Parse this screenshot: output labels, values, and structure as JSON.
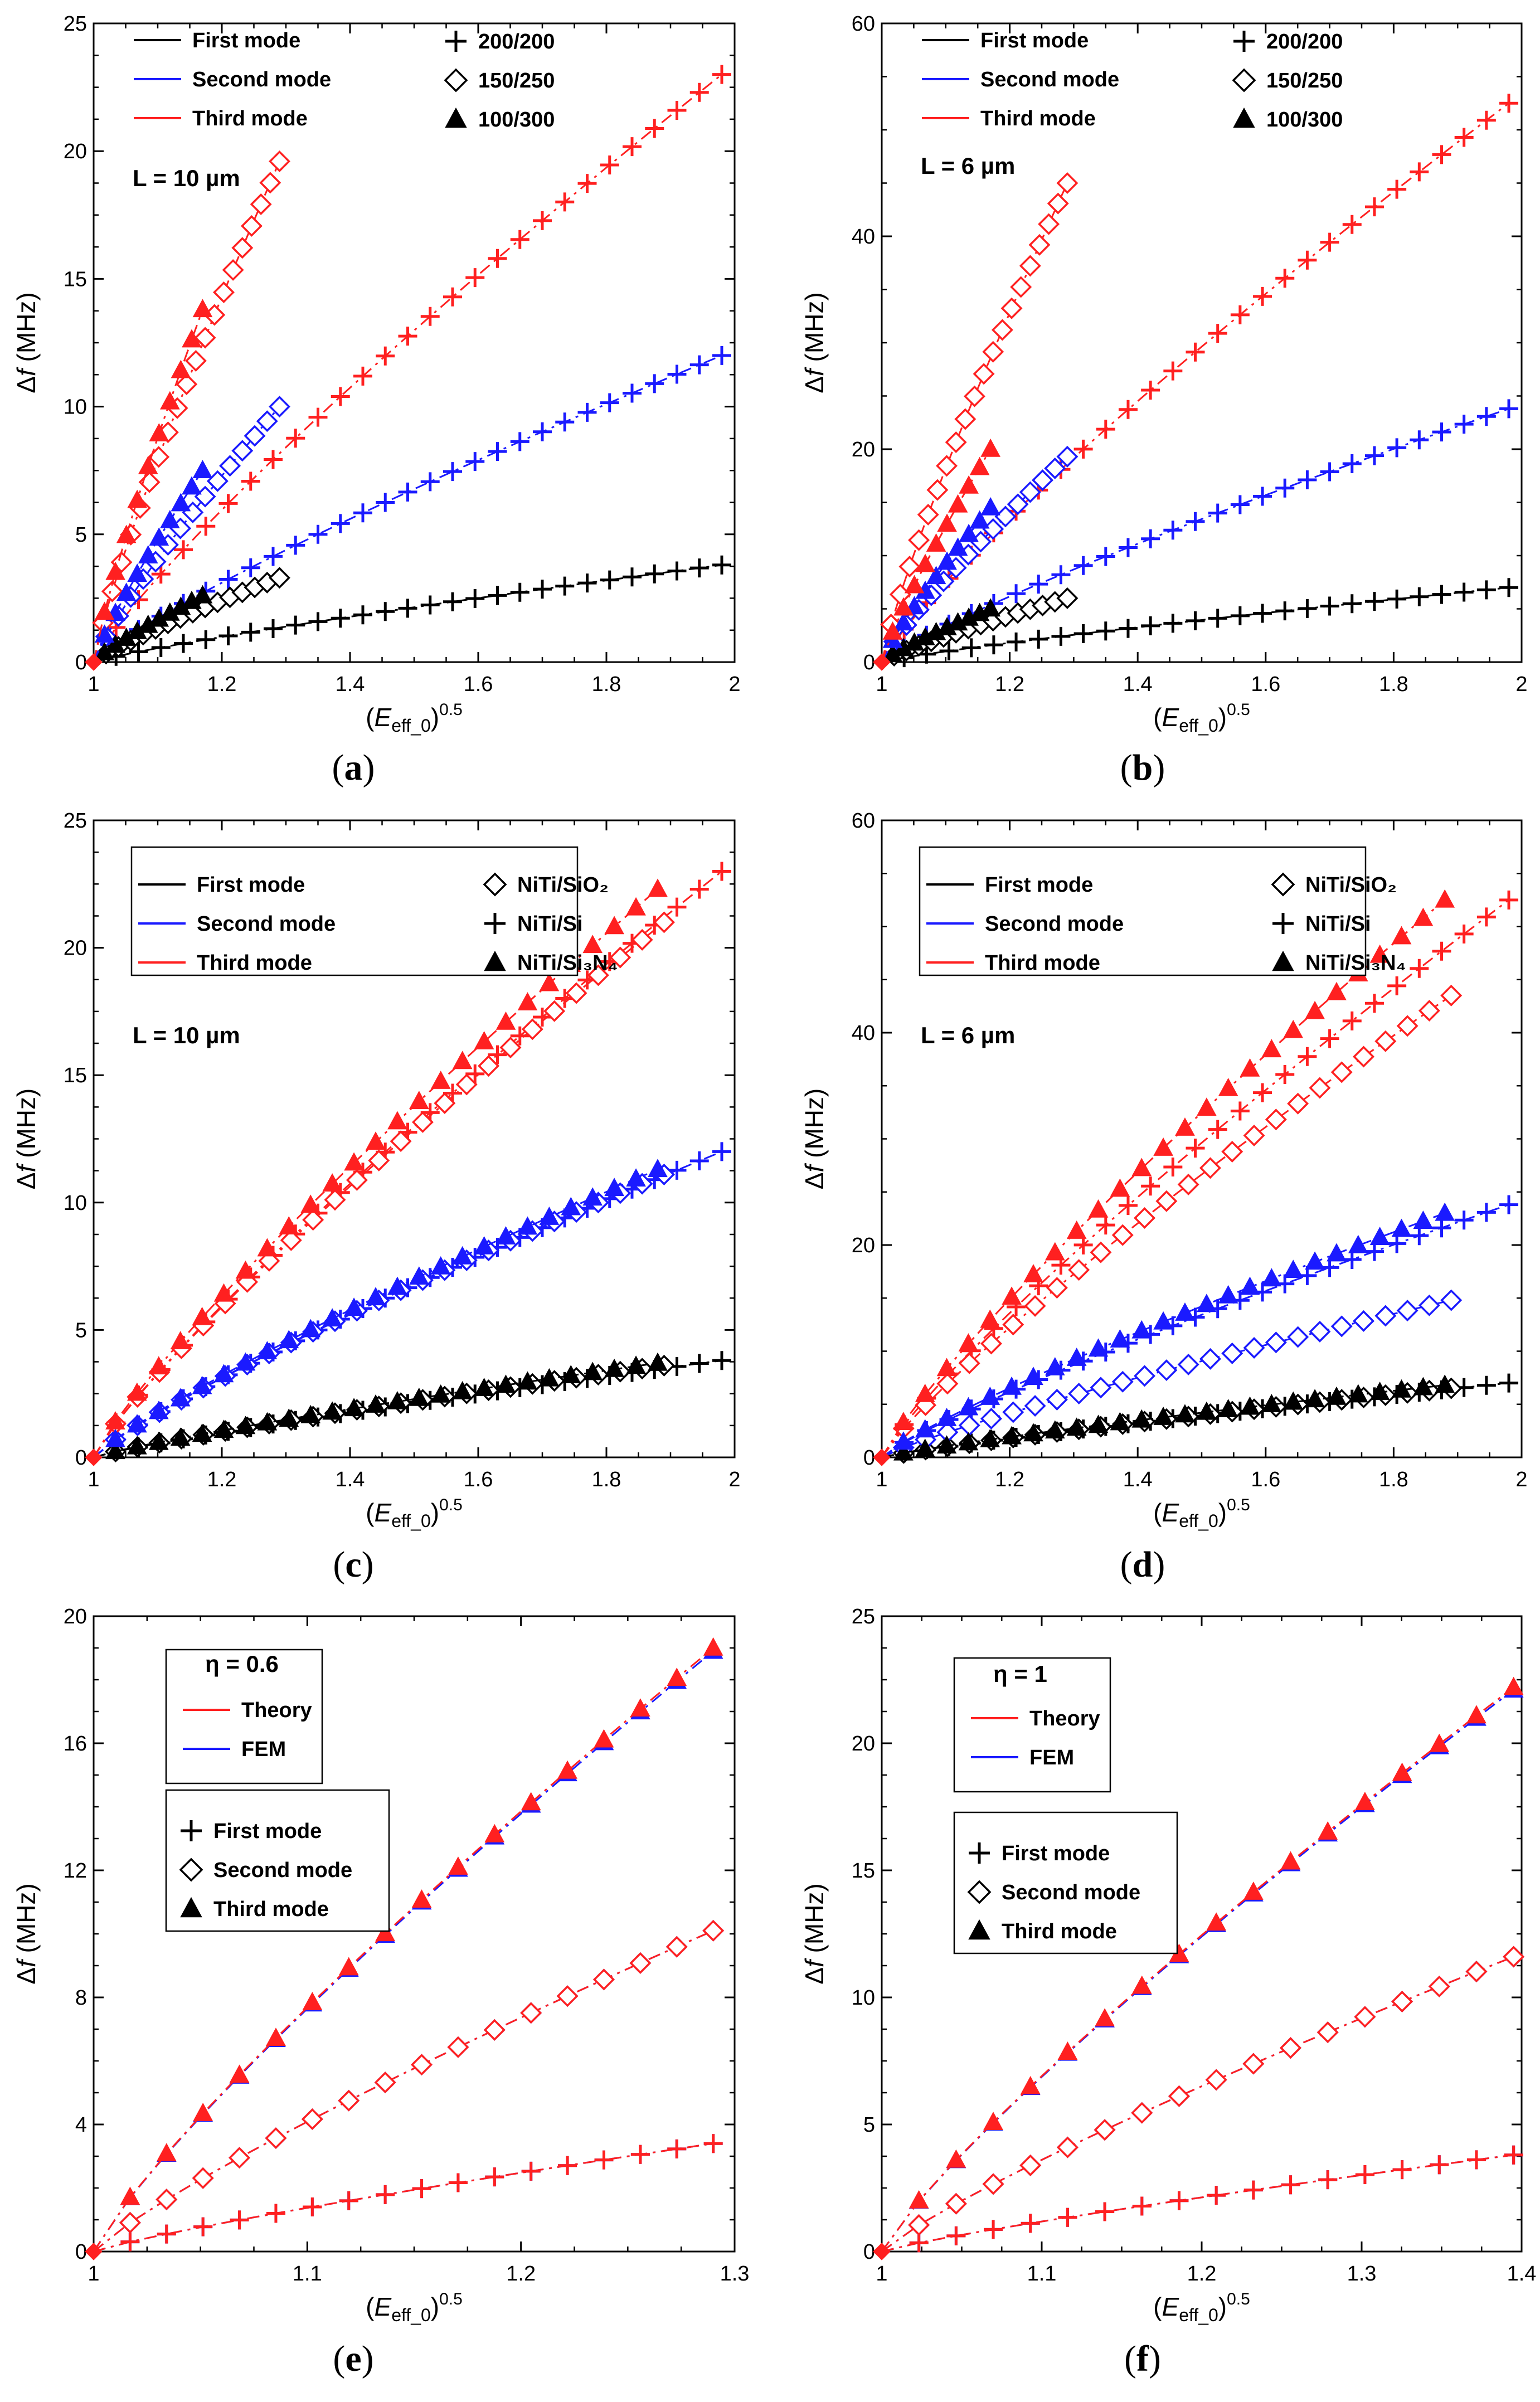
{
  "figure": {
    "panel_labels": [
      "a",
      "b",
      "c",
      "d",
      "e",
      "f"
    ]
  },
  "chart_data": [
    {
      "panel": "a",
      "type": "line",
      "ylabel": "Δf (MHz)",
      "xlabel": "(E_eff_0)^0.5",
      "xlim": [
        1,
        2
      ],
      "ylim": [
        0,
        25
      ],
      "xticks": [
        "1",
        "1.2",
        "1.4",
        "1.6",
        "1.8",
        "2"
      ],
      "yticks": [
        "0",
        "5",
        "10",
        "15",
        "20",
        "25"
      ],
      "annotation": "L = 10 µm",
      "legend_lines": [
        {
          "label": "First mode",
          "color": "#000000"
        },
        {
          "label": "Second mode",
          "color": "#1a1aff"
        },
        {
          "label": "Third mode",
          "color": "#ff2020"
        }
      ],
      "legend_markers": [
        {
          "label": "200/200",
          "marker": "plus"
        },
        {
          "label": "150/250",
          "marker": "diamond"
        },
        {
          "label": "100/300",
          "marker": "triangle"
        }
      ],
      "series": [
        {
          "name": "First mode 200/200",
          "color": "#000000",
          "marker": "plus",
          "x_end": 1.98,
          "y_end": 3.8,
          "n": 28
        },
        {
          "name": "Second mode 200/200",
          "color": "#1a1aff",
          "marker": "plus",
          "x_end": 1.98,
          "y_end": 12.0,
          "n": 28
        },
        {
          "name": "Third mode 200/200",
          "color": "#ff2020",
          "marker": "plus",
          "x_end": 1.98,
          "y_end": 23.0,
          "n": 28
        },
        {
          "name": "First mode 150/250",
          "color": "#000000",
          "marker": "diamond",
          "x_end": 1.29,
          "y_end": 3.3,
          "n": 15
        },
        {
          "name": "Second mode 150/250",
          "color": "#1a1aff",
          "marker": "diamond",
          "x_end": 1.29,
          "y_end": 10.0,
          "n": 15
        },
        {
          "name": "Third mode 150/250",
          "color": "#ff2020",
          "marker": "diamond",
          "x_end": 1.29,
          "y_end": 19.6,
          "n": 20
        },
        {
          "name": "First mode 100/300",
          "color": "#000000",
          "marker": "triangle",
          "x_end": 1.17,
          "y_end": 2.6,
          "n": 10
        },
        {
          "name": "Second mode 100/300",
          "color": "#1a1aff",
          "marker": "triangle",
          "x_end": 1.17,
          "y_end": 7.5,
          "n": 10
        },
        {
          "name": "Third mode 100/300",
          "color": "#ff2020",
          "marker": "triangle",
          "x_end": 1.17,
          "y_end": 13.8,
          "n": 10
        }
      ]
    },
    {
      "panel": "b",
      "type": "line",
      "ylabel": "Δf (MHz)",
      "xlabel": "(E_eff_0)^0.5",
      "xlim": [
        1,
        2
      ],
      "ylim": [
        0,
        60
      ],
      "xticks": [
        "1",
        "1.2",
        "1.4",
        "1.6",
        "1.8",
        "2"
      ],
      "yticks": [
        "0",
        "20",
        "40",
        "60"
      ],
      "annotation": "L = 6 µm",
      "legend_lines": [
        {
          "label": "First mode",
          "color": "#000000"
        },
        {
          "label": "Second mode",
          "color": "#1a1aff"
        },
        {
          "label": "Third mode",
          "color": "#ff2020"
        }
      ],
      "legend_markers": [
        {
          "label": "200/200",
          "marker": "plus"
        },
        {
          "label": "150/250",
          "marker": "diamond"
        },
        {
          "label": "100/300",
          "marker": "triangle"
        }
      ],
      "series": [
        {
          "name": "First mode 200/200",
          "color": "#000000",
          "marker": "plus",
          "x_end": 1.98,
          "y_end": 7.0,
          "n": 28
        },
        {
          "name": "Second mode 200/200",
          "color": "#1a1aff",
          "marker": "plus",
          "x_end": 1.98,
          "y_end": 23.8,
          "n": 28
        },
        {
          "name": "Third mode 200/200",
          "color": "#ff2020",
          "marker": "plus",
          "x_end": 1.98,
          "y_end": 52.5,
          "n": 28
        },
        {
          "name": "First mode 150/250",
          "color": "#000000",
          "marker": "diamond",
          "x_end": 1.29,
          "y_end": 6.0,
          "n": 15
        },
        {
          "name": "Second mode 150/250",
          "color": "#1a1aff",
          "marker": "diamond",
          "x_end": 1.29,
          "y_end": 19.3,
          "n": 15
        },
        {
          "name": "Third mode 150/250",
          "color": "#ff2020",
          "marker": "diamond",
          "x_end": 1.29,
          "y_end": 45.0,
          "n": 20
        },
        {
          "name": "First mode 100/300",
          "color": "#000000",
          "marker": "triangle",
          "x_end": 1.17,
          "y_end": 5.0,
          "n": 10
        },
        {
          "name": "Second mode 100/300",
          "color": "#1a1aff",
          "marker": "triangle",
          "x_end": 1.17,
          "y_end": 14.5,
          "n": 10
        },
        {
          "name": "Third mode 100/300",
          "color": "#ff2020",
          "marker": "triangle",
          "x_end": 1.17,
          "y_end": 20.0,
          "n": 10
        }
      ]
    },
    {
      "panel": "c",
      "type": "line",
      "ylabel": "Δf (MHz)",
      "xlabel": "(E_eff_0)^0.5",
      "xlim": [
        1,
        2
      ],
      "ylim": [
        0,
        25
      ],
      "xticks": [
        "1",
        "1.2",
        "1.4",
        "1.6",
        "1.8",
        "2"
      ],
      "yticks": [
        "0",
        "5",
        "10",
        "15",
        "20",
        "25"
      ],
      "annotation": "L = 10 µm",
      "legend_lines": [
        {
          "label": "First mode",
          "color": "#000000"
        },
        {
          "label": "Second mode",
          "color": "#1a1aff"
        },
        {
          "label": "Third mode",
          "color": "#ff2020"
        }
      ],
      "legend_markers": [
        {
          "label": "NiTi/SiO₂",
          "marker": "diamond"
        },
        {
          "label": "NiTi/Si",
          "marker": "plus"
        },
        {
          "label": "NiTi/Si₃N₄",
          "marker": "triangle"
        }
      ],
      "series": [
        {
          "name": "First mode NiTi/Si",
          "color": "#000000",
          "marker": "plus",
          "x_end": 1.98,
          "y_end": 3.8,
          "n": 28
        },
        {
          "name": "Second mode NiTi/Si",
          "color": "#1a1aff",
          "marker": "plus",
          "x_end": 1.98,
          "y_end": 12.0,
          "n": 28
        },
        {
          "name": "Third mode NiTi/Si",
          "color": "#ff2020",
          "marker": "plus",
          "x_end": 1.98,
          "y_end": 23.0,
          "n": 28
        },
        {
          "name": "First mode NiTi/SiO2",
          "color": "#000000",
          "marker": "diamond",
          "x_end": 1.89,
          "y_end": 3.6,
          "n": 26
        },
        {
          "name": "Second mode NiTi/SiO2",
          "color": "#1a1aff",
          "marker": "diamond",
          "x_end": 1.89,
          "y_end": 11.1,
          "n": 26
        },
        {
          "name": "Third mode NiTi/SiO2",
          "color": "#ff2020",
          "marker": "diamond",
          "x_end": 1.89,
          "y_end": 21.0,
          "n": 26
        },
        {
          "name": "First mode NiTi/Si3N4",
          "color": "#000000",
          "marker": "triangle",
          "x_end": 1.88,
          "y_end": 3.7,
          "n": 26
        },
        {
          "name": "Second mode NiTi/Si3N4",
          "color": "#1a1aff",
          "marker": "triangle",
          "x_end": 1.88,
          "y_end": 11.3,
          "n": 26
        },
        {
          "name": "Third mode NiTi/Si3N4",
          "color": "#ff2020",
          "marker": "triangle",
          "x_end": 1.88,
          "y_end": 22.3,
          "n": 26
        }
      ]
    },
    {
      "panel": "d",
      "type": "line",
      "ylabel": "Δf (MHz)",
      "xlabel": "(E_eff_0)^0.5",
      "xlim": [
        1,
        2
      ],
      "ylim": [
        0,
        60
      ],
      "xticks": [
        "1",
        "1.2",
        "1.4",
        "1.6",
        "1.8",
        "2"
      ],
      "yticks": [
        "0",
        "20",
        "40",
        "60"
      ],
      "annotation": "L = 6 µm",
      "legend_lines": [
        {
          "label": "First mode",
          "color": "#000000"
        },
        {
          "label": "Second mode",
          "color": "#1a1aff"
        },
        {
          "label": "Third mode",
          "color": "#ff2020"
        }
      ],
      "legend_markers": [
        {
          "label": "NiTi/SiO₂",
          "marker": "diamond"
        },
        {
          "label": "NiTi/Si",
          "marker": "plus"
        },
        {
          "label": "NiTi/Si₃N₄",
          "marker": "triangle"
        }
      ],
      "series": [
        {
          "name": "First mode NiTi/Si",
          "color": "#000000",
          "marker": "plus",
          "x_end": 1.98,
          "y_end": 7.0,
          "n": 28
        },
        {
          "name": "Second mode NiTi/Si",
          "color": "#1a1aff",
          "marker": "plus",
          "x_end": 1.98,
          "y_end": 23.8,
          "n": 28
        },
        {
          "name": "Third mode NiTi/Si",
          "color": "#ff2020",
          "marker": "plus",
          "x_end": 1.98,
          "y_end": 52.5,
          "n": 28
        },
        {
          "name": "First mode NiTi/SiO2",
          "color": "#000000",
          "marker": "diamond",
          "x_end": 1.89,
          "y_end": 6.5,
          "n": 26
        },
        {
          "name": "Second mode NiTi/SiO2",
          "color": "#1a1aff",
          "marker": "diamond",
          "x_end": 1.89,
          "y_end": 14.8,
          "n": 26
        },
        {
          "name": "Third mode NiTi/SiO2",
          "color": "#ff2020",
          "marker": "diamond",
          "x_end": 1.89,
          "y_end": 43.5,
          "n": 26
        },
        {
          "name": "First mode NiTi/Si3N4",
          "color": "#000000",
          "marker": "triangle",
          "x_end": 1.88,
          "y_end": 6.8,
          "n": 26
        },
        {
          "name": "Second mode NiTi/Si3N4",
          "color": "#1a1aff",
          "marker": "triangle",
          "x_end": 1.88,
          "y_end": 23.0,
          "n": 26
        },
        {
          "name": "Third mode NiTi/Si3N4",
          "color": "#ff2020",
          "marker": "triangle",
          "x_end": 1.88,
          "y_end": 52.5,
          "n": 26
        }
      ]
    },
    {
      "panel": "e",
      "type": "line",
      "ylabel": "Δf (MHz)",
      "xlabel": "(E_eff_0)^0.5",
      "xlim": [
        1,
        1.3
      ],
      "ylim": [
        0,
        20
      ],
      "xticks": [
        "1",
        "1.1",
        "1.2",
        "1.3"
      ],
      "yticks": [
        "0",
        "4",
        "8",
        "12",
        "16",
        "20"
      ],
      "annotation": "η = 0.6",
      "legend_lines": [
        {
          "label": "Theory",
          "color": "#ff2020"
        },
        {
          "label": "FEM",
          "color": "#1a1aff"
        }
      ],
      "legend_markers": [
        {
          "label": "First mode",
          "marker": "plus"
        },
        {
          "label": "Second mode",
          "marker": "diamond"
        },
        {
          "label": "Third mode",
          "marker": "triangle"
        }
      ],
      "series": [
        {
          "name": "First mode FEM",
          "color": "#1a1aff",
          "marker": "plus",
          "x_end": 1.29,
          "y_end": 3.4,
          "n": 17
        },
        {
          "name": "First mode Theory",
          "color": "#ff2020",
          "marker": "plus",
          "x_end": 1.29,
          "y_end": 3.4,
          "n": 17
        },
        {
          "name": "Second mode FEM",
          "color": "#1a1aff",
          "marker": "diamond",
          "x_end": 1.29,
          "y_end": 10.1,
          "n": 17
        },
        {
          "name": "Second mode Theory",
          "color": "#ff2020",
          "marker": "diamond",
          "x_end": 1.29,
          "y_end": 10.1,
          "n": 17
        },
        {
          "name": "Third mode FEM",
          "color": "#1a1aff",
          "marker": "triangle",
          "x_end": 1.29,
          "y_end": 18.9,
          "n": 17
        },
        {
          "name": "Third mode Theory",
          "color": "#ff2020",
          "marker": "triangle",
          "x_end": 1.29,
          "y_end": 19.0,
          "n": 17
        }
      ]
    },
    {
      "panel": "f",
      "type": "line",
      "ylabel": "Δf (MHz)",
      "xlabel": "(E_eff_0)^0.5",
      "xlim": [
        1,
        1.4
      ],
      "ylim": [
        0,
        25
      ],
      "xticks": [
        "1",
        "1.1",
        "1.2",
        "1.3",
        "1.4"
      ],
      "yticks": [
        "0",
        "5",
        "10",
        "15",
        "20",
        "25"
      ],
      "annotation": "η = 1",
      "legend_lines": [
        {
          "label": "Theory",
          "color": "#ff2020"
        },
        {
          "label": "FEM",
          "color": "#1a1aff"
        }
      ],
      "legend_markers": [
        {
          "label": "First mode",
          "marker": "plus"
        },
        {
          "label": "Second mode",
          "marker": "diamond"
        },
        {
          "label": "Third mode",
          "marker": "triangle"
        }
      ],
      "series": [
        {
          "name": "First mode FEM",
          "color": "#1a1aff",
          "marker": "plus",
          "x_end": 1.395,
          "y_end": 3.8,
          "n": 17
        },
        {
          "name": "First mode Theory",
          "color": "#ff2020",
          "marker": "plus",
          "x_end": 1.395,
          "y_end": 3.8,
          "n": 17
        },
        {
          "name": "Second mode FEM",
          "color": "#1a1aff",
          "marker": "diamond",
          "x_end": 1.395,
          "y_end": 11.6,
          "n": 17
        },
        {
          "name": "Second mode Theory",
          "color": "#ff2020",
          "marker": "diamond",
          "x_end": 1.395,
          "y_end": 11.6,
          "n": 17
        },
        {
          "name": "Third mode FEM",
          "color": "#1a1aff",
          "marker": "triangle",
          "x_end": 1.395,
          "y_end": 22.1,
          "n": 17
        },
        {
          "name": "Third mode Theory",
          "color": "#ff2020",
          "marker": "triangle",
          "x_end": 1.395,
          "y_end": 22.2,
          "n": 17
        }
      ]
    }
  ]
}
